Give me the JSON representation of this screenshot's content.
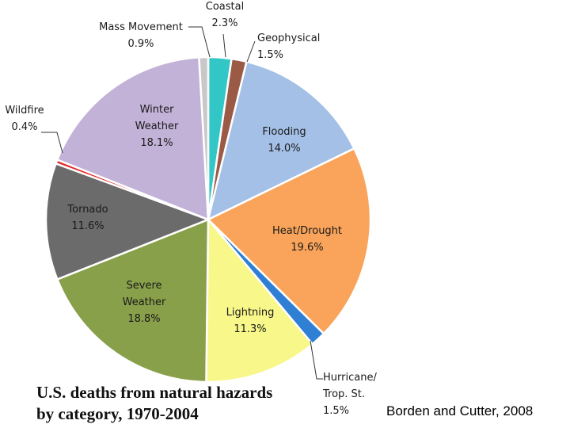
{
  "chart_data": {
    "type": "pie",
    "title_lines": [
      "U.S. deaths from natural hazards",
      "by category, 1970-2004"
    ],
    "source": "Borden and Cutter, 2008",
    "slices": [
      {
        "lines": [
          "Coastal"
        ],
        "pct": "2.3%",
        "value": 2.3,
        "color": "#33c6c6"
      },
      {
        "lines": [
          "Geophysical"
        ],
        "pct": "1.5%",
        "value": 1.5,
        "color": "#9a5a46"
      },
      {
        "lines": [
          "Flooding"
        ],
        "pct": "14.0%",
        "value": 14.0,
        "color": "#a4c0e6"
      },
      {
        "lines": [
          "Heat/Drought"
        ],
        "pct": "19.6%",
        "value": 19.6,
        "color": "#f9a45a"
      },
      {
        "lines": [
          "Hurricane/",
          "Trop. St."
        ],
        "pct": "1.5%",
        "value": 1.5,
        "color": "#2f7fd4"
      },
      {
        "lines": [
          "Lightning"
        ],
        "pct": "11.3%",
        "value": 11.3,
        "color": "#f7f78a"
      },
      {
        "lines": [
          "Severe",
          "Weather"
        ],
        "pct": "18.8%",
        "value": 18.8,
        "color": "#88a04a"
      },
      {
        "lines": [
          "Tornado"
        ],
        "pct": "11.6%",
        "value": 11.6,
        "color": "#6b6b6b"
      },
      {
        "lines": [
          "Wildfire"
        ],
        "pct": "0.4%",
        "value": 0.4,
        "color": "#e52b2b"
      },
      {
        "lines": [
          "Winter",
          "Weather"
        ],
        "pct": "18.1%",
        "value": 18.1,
        "color": "#c3b2d8"
      },
      {
        "lines": [
          "Mass Movement"
        ],
        "pct": "0.9%",
        "value": 0.9,
        "color": "#c8c8c8"
      }
    ]
  }
}
